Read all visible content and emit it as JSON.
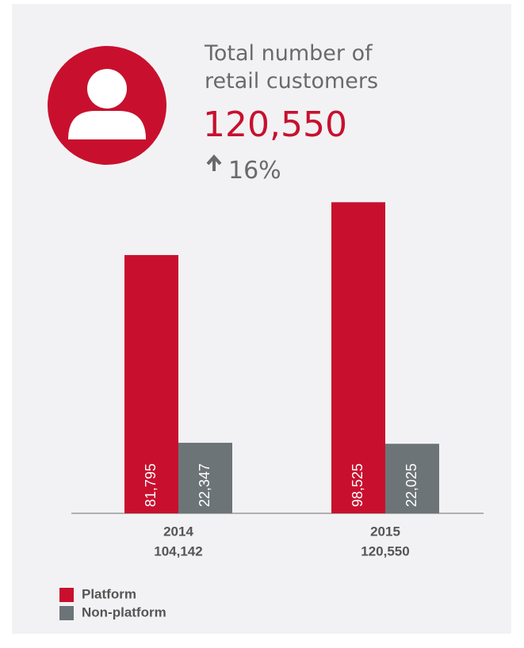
{
  "chart_data": {
    "type": "bar",
    "title": "Total number of retail customers",
    "headline": "120,550",
    "change": "16%",
    "categories": [
      "2014",
      "2015"
    ],
    "category_totals": [
      "104,142",
      "120,550"
    ],
    "series": [
      {
        "name": "Platform",
        "color": "#c8102e",
        "values": [
          81795,
          98525
        ],
        "value_labels": [
          "81,795",
          "98,525"
        ]
      },
      {
        "name": "Non-platform",
        "color": "#6d7478",
        "values": [
          22347,
          22025
        ],
        "value_labels": [
          "22,347",
          "22,025"
        ]
      }
    ],
    "ylim": [
      0,
      100000
    ]
  }
}
